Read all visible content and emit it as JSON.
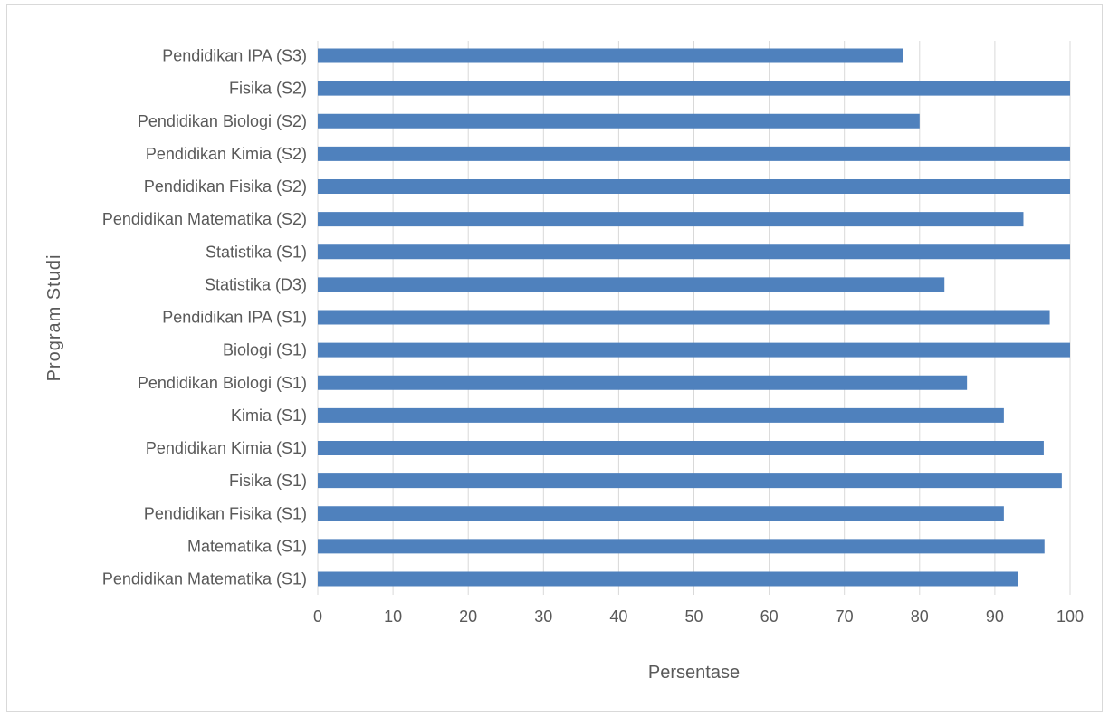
{
  "chart_data": {
    "type": "bar",
    "orientation": "horizontal",
    "categories": [
      "Pendidikan IPA (S3)",
      "Fisika (S2)",
      "Pendidikan Biologi (S2)",
      "Pendidikan Kimia (S2)",
      "Pendidikan Fisika (S2)",
      "Pendidikan Matematika (S2)",
      "Statistika (S1)",
      "Statistika (D3)",
      "Pendidikan IPA (S1)",
      "Biologi (S1)",
      "Pendidikan Biologi (S1)",
      "Kimia (S1)",
      "Pendidikan Kimia (S1)",
      "Fisika (S1)",
      "Pendidikan Fisika (S1)",
      "Matematika (S1)",
      "Pendidikan Matematika (S1)"
    ],
    "values": [
      77.8,
      100,
      80,
      100,
      100,
      93.8,
      100,
      83.3,
      97.3,
      100,
      86.3,
      91.2,
      96.5,
      98.9,
      91.2,
      96.6,
      93.1
    ],
    "xlabel": "Persentase",
    "ylabel": "Program Studi",
    "xlim": [
      0,
      100
    ],
    "xticks": [
      "0",
      "10",
      "20",
      "30",
      "40",
      "50",
      "60",
      "70",
      "80",
      "90",
      "100"
    ],
    "grid": true,
    "bar_color": "#4f81bd",
    "grid_color": "#d9d9d9"
  }
}
